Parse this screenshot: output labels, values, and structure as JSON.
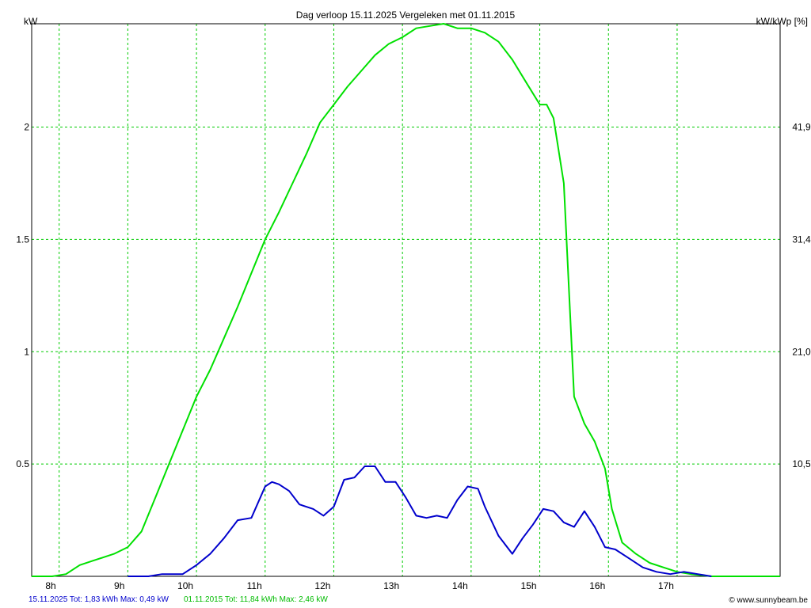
{
  "chart_data": {
    "type": "line",
    "title": "Dag  verloop 15.11.2025   Vergeleken met 01.11.2015",
    "ylabel_left": "kW",
    "ylabel_right": "kW/kWp [%]",
    "ylim": [
      0,
      2.46
    ],
    "xlim": [
      7.6,
      18.5
    ],
    "grid": true,
    "x_ticks": [
      {
        "x": 8,
        "label": "8h"
      },
      {
        "x": 9,
        "label": "9h"
      },
      {
        "x": 10,
        "label": "10h"
      },
      {
        "x": 11,
        "label": "11h"
      },
      {
        "x": 12,
        "label": "12h"
      },
      {
        "x": 13,
        "label": "13h"
      },
      {
        "x": 14,
        "label": "14h"
      },
      {
        "x": 15,
        "label": "15h"
      },
      {
        "x": 16,
        "label": "16h"
      },
      {
        "x": 17,
        "label": "17h"
      }
    ],
    "y_ticks_left": [
      {
        "y": 0.5,
        "label": "0.5"
      },
      {
        "y": 1,
        "label": "1"
      },
      {
        "y": 1.5,
        "label": "1.5"
      },
      {
        "y": 2,
        "label": "2"
      }
    ],
    "y_ticks_right": [
      {
        "y": 0.5,
        "label": "10,5"
      },
      {
        "y": 1,
        "label": "21,0"
      },
      {
        "y": 1.5,
        "label": "31,4"
      },
      {
        "y": 2,
        "label": "41,9"
      }
    ],
    "series": [
      {
        "name": "01.11.2015",
        "color": "#00e000",
        "x": [
          7.6,
          7.9,
          8.1,
          8.3,
          8.5,
          8.8,
          9.0,
          9.2,
          9.4,
          9.6,
          9.8,
          10.0,
          10.2,
          10.4,
          10.6,
          10.8,
          11.0,
          11.2,
          11.4,
          11.6,
          11.8,
          12.0,
          12.2,
          12.4,
          12.6,
          12.8,
          13.0,
          13.2,
          13.4,
          13.6,
          13.8,
          14.0,
          14.2,
          14.4,
          14.6,
          14.8,
          15.0,
          15.1,
          15.2,
          15.35,
          15.5,
          15.65,
          15.8,
          15.95,
          16.05,
          16.2,
          16.4,
          16.6,
          16.8,
          17.0,
          17.2,
          17.5,
          18.0,
          18.5
        ],
        "y": [
          0,
          0,
          0.01,
          0.05,
          0.07,
          0.1,
          0.13,
          0.2,
          0.35,
          0.5,
          0.65,
          0.8,
          0.92,
          1.06,
          1.2,
          1.35,
          1.5,
          1.62,
          1.75,
          1.88,
          2.02,
          2.1,
          2.18,
          2.25,
          2.32,
          2.37,
          2.4,
          2.44,
          2.45,
          2.46,
          2.44,
          2.44,
          2.42,
          2.38,
          2.3,
          2.2,
          2.1,
          2.1,
          2.04,
          1.75,
          0.8,
          0.68,
          0.6,
          0.48,
          0.3,
          0.15,
          0.1,
          0.06,
          0.04,
          0.02,
          0.01,
          0,
          0,
          0
        ]
      },
      {
        "name": "15.11.2025",
        "color": "#0000cc",
        "x": [
          9.0,
          9.3,
          9.5,
          9.8,
          10.0,
          10.2,
          10.4,
          10.6,
          10.8,
          11.0,
          11.1,
          11.2,
          11.35,
          11.5,
          11.7,
          11.85,
          12.0,
          12.15,
          12.3,
          12.45,
          12.6,
          12.75,
          12.9,
          13.05,
          13.2,
          13.35,
          13.5,
          13.65,
          13.8,
          13.95,
          14.1,
          14.2,
          14.4,
          14.6,
          14.75,
          14.9,
          15.05,
          15.2,
          15.35,
          15.5,
          15.65,
          15.8,
          15.95,
          16.1,
          16.3,
          16.5,
          16.7,
          16.9,
          17.1,
          17.3,
          17.5
        ],
        "y": [
          0,
          0,
          0.01,
          0.01,
          0.05,
          0.1,
          0.17,
          0.25,
          0.26,
          0.4,
          0.42,
          0.41,
          0.38,
          0.32,
          0.3,
          0.27,
          0.31,
          0.43,
          0.44,
          0.49,
          0.49,
          0.42,
          0.42,
          0.35,
          0.27,
          0.26,
          0.27,
          0.26,
          0.34,
          0.4,
          0.39,
          0.31,
          0.18,
          0.1,
          0.17,
          0.23,
          0.3,
          0.29,
          0.24,
          0.22,
          0.29,
          0.22,
          0.13,
          0.12,
          0.08,
          0.04,
          0.02,
          0.01,
          0.02,
          0.01,
          0
        ]
      }
    ]
  },
  "footer": {
    "series_a": "15.11.2025 Tot: 1,83 kWh Max: 0,49 kW",
    "series_b": "01.11.2015 Tot: 11,84 kWh Max: 2,46 kW",
    "credit": "© www.sunnybeam.be"
  }
}
